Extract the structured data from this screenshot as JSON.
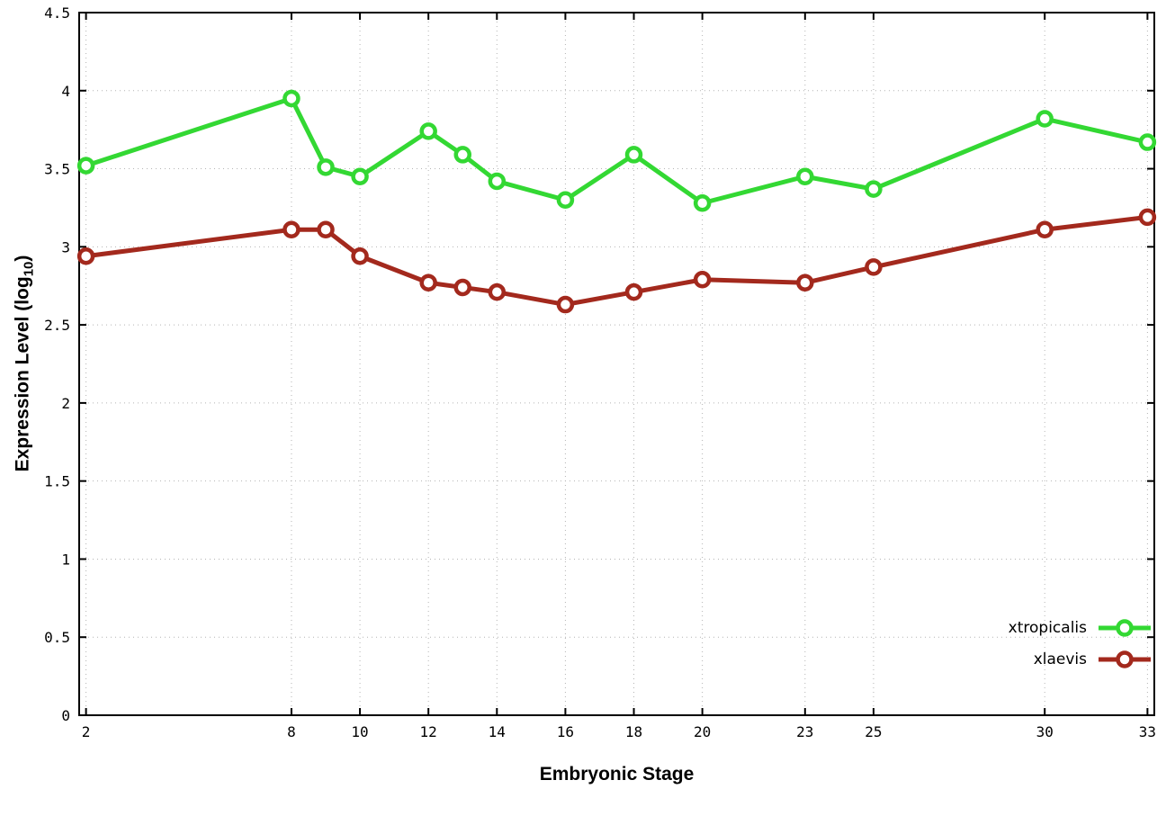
{
  "figure": {
    "background": "#ffffff",
    "border_color": "#000000",
    "grid_color": "#b4b4b4",
    "text_color": "#000000"
  },
  "chart_data": {
    "type": "line",
    "title": "",
    "xlabel": "Embryonic Stage",
    "ylabel": "Expression Level (log10)",
    "ylabel_parts": {
      "pre": "Expression Level (log",
      "sub": "10",
      "post": ")"
    },
    "xlim": [
      1.8,
      33.2
    ],
    "ylim": [
      0,
      4.5
    ],
    "xticks": [
      2,
      8,
      10,
      12,
      14,
      16,
      18,
      20,
      23,
      25,
      30,
      33
    ],
    "yticks": [
      0,
      0.5,
      1,
      1.5,
      2,
      2.5,
      3,
      3.5,
      4,
      4.5
    ],
    "grid": true,
    "grid_style": "dotted",
    "legend_position": "bottom-right",
    "marker": "open-circle",
    "x": [
      2,
      8,
      9,
      10,
      12,
      13,
      14,
      16,
      18,
      20,
      23,
      25,
      30,
      33
    ],
    "series": [
      {
        "name": "xtropicalis",
        "color": "#33d833",
        "values": [
          3.52,
          3.95,
          3.51,
          3.45,
          3.74,
          3.59,
          3.42,
          3.3,
          3.59,
          3.28,
          3.45,
          3.37,
          3.82,
          3.67
        ]
      },
      {
        "name": "xlaevis",
        "color": "#a3291d",
        "values": [
          2.94,
          3.11,
          3.11,
          2.94,
          2.77,
          2.74,
          2.71,
          2.63,
          2.71,
          2.79,
          2.77,
          2.87,
          3.11,
          3.19
        ]
      }
    ]
  }
}
